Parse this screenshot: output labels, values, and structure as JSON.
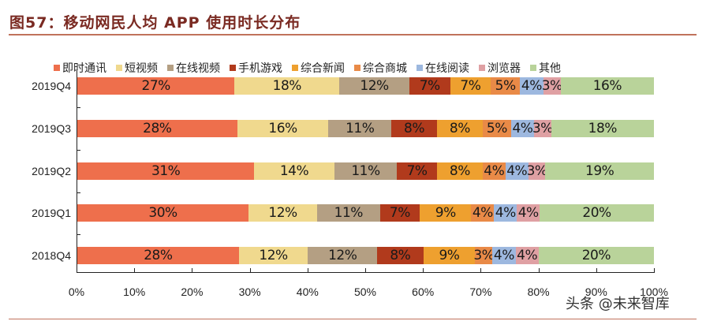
{
  "header": {
    "title": "图57：移动网民人均 APP 使用时长分布"
  },
  "watermark": "头条 @未来智库",
  "chart_data": {
    "type": "bar",
    "orientation": "horizontal",
    "stacked": true,
    "normalized": true,
    "title": "图57：移动网民人均 APP 使用时长分布",
    "xlabel": "",
    "ylabel": "",
    "xlim": [
      0,
      100
    ],
    "x_ticks": [
      "0%",
      "10%",
      "20%",
      "30%",
      "40%",
      "50%",
      "60%",
      "70%",
      "80%",
      "90%",
      "100%"
    ],
    "legend_position": "top",
    "grid": false,
    "categories": [
      "2019Q4",
      "2019Q3",
      "2019Q2",
      "2019Q1",
      "2018Q4"
    ],
    "series": [
      {
        "name": "即时通讯",
        "color": "#ee6f4c",
        "values": [
          27,
          28,
          31,
          30,
          28
        ]
      },
      {
        "name": "短视频",
        "color": "#f0d98e",
        "values": [
          18,
          16,
          14,
          12,
          12
        ]
      },
      {
        "name": "在线视频",
        "color": "#b49f83",
        "values": [
          12,
          11,
          11,
          11,
          12
        ]
      },
      {
        "name": "手机游戏",
        "color": "#b13a1c",
        "values": [
          7,
          8,
          7,
          7,
          8
        ]
      },
      {
        "name": "综合新闻",
        "color": "#eea02f",
        "values": [
          7,
          8,
          8,
          9,
          9
        ]
      },
      {
        "name": "综合商城",
        "color": "#e98a47",
        "values": [
          5,
          5,
          4,
          4,
          3
        ]
      },
      {
        "name": "在线阅读",
        "color": "#9db8df",
        "values": [
          4,
          4,
          4,
          4,
          4
        ]
      },
      {
        "name": "浏览器",
        "color": "#dfa0a3",
        "values": [
          3,
          3,
          3,
          4,
          4
        ]
      },
      {
        "name": "其他",
        "color": "#b9d39a",
        "values": [
          16,
          18,
          19,
          20,
          20
        ]
      }
    ]
  }
}
